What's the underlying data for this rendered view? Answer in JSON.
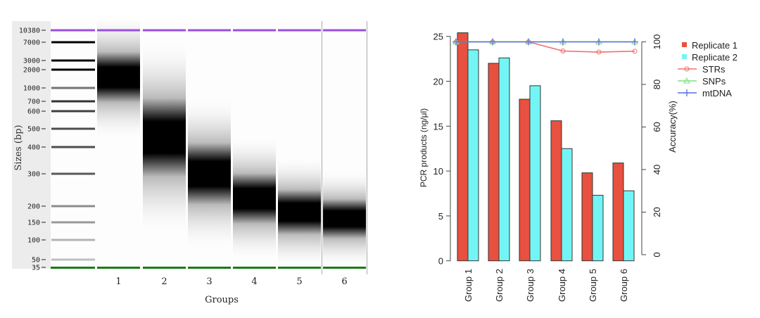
{
  "chart_data": [
    {
      "type": "gel",
      "ylabel": "Sizes (bp)",
      "xlabel": "Groups",
      "ladder_sizes": [
        10380,
        7000,
        3000,
        2000,
        1000,
        700,
        600,
        500,
        400,
        300,
        200,
        150,
        100,
        50,
        35
      ],
      "lanes": [
        "1",
        "2",
        "3",
        "4",
        "5",
        "6"
      ],
      "band_peak_bp": [
        1500,
        450,
        300,
        220,
        180,
        160
      ],
      "upper_marker_color": "#9b4de0",
      "lower_marker_color": "#1a7a1a"
    },
    {
      "type": "bar",
      "categories": [
        "Group 1",
        "Group 2",
        "Group 3",
        "Group 4",
        "Group 5",
        "Group 6"
      ],
      "ylabel": "PCR products (ng/μl)",
      "ylim": [
        0,
        25
      ],
      "yticks": [
        "0",
        "5",
        "10",
        "15",
        "20",
        "25"
      ],
      "y2label": "Accuracy(%)",
      "y2lim": [
        0,
        100
      ],
      "y2ticks": [
        "0",
        "20",
        "40",
        "60",
        "80",
        "100"
      ],
      "series": [
        {
          "name": "Replicate 1",
          "kind": "bar",
          "color": "#e8503f",
          "values": [
            25.4,
            22.0,
            18.0,
            15.6,
            9.8,
            10.9
          ]
        },
        {
          "name": "Replicate 2",
          "kind": "bar",
          "color": "#74f5f5",
          "values": [
            23.5,
            22.6,
            19.5,
            12.5,
            7.3,
            7.8
          ]
        },
        {
          "name": "STRs",
          "kind": "line",
          "axis": "right",
          "color": "#f07070",
          "values": [
            100,
            100,
            100,
            95.7,
            95.2,
            95.6
          ]
        },
        {
          "name": "SNPs",
          "kind": "line",
          "axis": "right",
          "color": "#7ee07e",
          "values": [
            100,
            100,
            100,
            100,
            100,
            100
          ]
        },
        {
          "name": "mtDNA",
          "kind": "line",
          "axis": "right",
          "color": "#5b6fe0",
          "values": [
            100,
            100,
            100,
            100,
            100,
            100
          ]
        }
      ],
      "legend": "top-right"
    }
  ]
}
